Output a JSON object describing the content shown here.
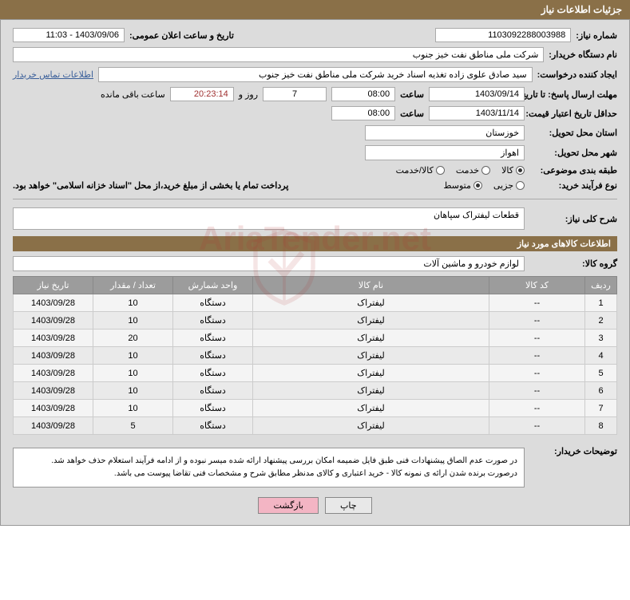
{
  "header": {
    "title": "جزئیات اطلاعات نیاز"
  },
  "fields": {
    "need_no_lbl": "شماره نیاز:",
    "need_no": "1103092288003988",
    "announce_dt_lbl": "تاریخ و ساعت اعلان عمومی:",
    "announce_dt": "1403/09/06 - 11:03",
    "buyer_org_lbl": "نام دستگاه خریدار:",
    "buyer_org": "شرکت ملی مناطق نفت خیز جنوب",
    "requester_lbl": "ایجاد کننده درخواست:",
    "requester": "سید صادق علوی زاده  تغذیه اسناد خرید  شرکت ملی مناطق نفت خیز جنوب",
    "buyer_contact": "اطلاعات تماس خریدار",
    "deadline_lbl": "مهلت ارسال پاسخ: تا تاریخ:",
    "deadline_date": "1403/09/14",
    "time_lbl": "ساعت",
    "deadline_time": "08:00",
    "days": "7",
    "days_and": "روز و",
    "remain_time": "20:23:14",
    "remain_suffix": "ساعت باقی مانده",
    "validity_lbl": "حداقل تاریخ اعتبار قیمت: تا تاریخ:",
    "validity_date": "1403/11/14",
    "validity_time": "08:00",
    "province_lbl": "استان محل تحویل:",
    "province": "خوزستان",
    "city_lbl": "شهر محل تحویل:",
    "city": "اهواز",
    "category_lbl": "طبقه بندی موضوعی:",
    "cat_goods": "کالا",
    "cat_service": "خدمت",
    "cat_both": "کالا/خدمت",
    "purchase_type_lbl": "نوع فرآیند خرید:",
    "pt_small": "جزیی",
    "pt_medium": "متوسط",
    "invoice_note": "پرداخت تمام یا بخشی از مبلغ خرید،از محل \"اسناد خزانه اسلامی\" خواهد بود.",
    "desc_lbl": "شرح کلی نیاز:",
    "desc": "قطعات لیفتراک سپاهان",
    "goods_info_title": "اطلاعات کالاهای مورد نیاز",
    "group_lbl": "گروه کالا:",
    "group": "لوازم خودرو و ماشین آلات",
    "note_lbl": "توضیحات خریدار:",
    "note_text": "در صورت عدم الصاق پیشنهادات فنی طبق فایل ضمیمه امکان بررسی پیشنهاد ارائه شده میسر نبوده و از ادامه فرآیند استعلام حذف خواهد شد.\nدرصورت برنده شدن ارائه ی نمونه کالا - خرید اعتباری و کالای مدنظر مطابق شرح و مشخصات فنی تقاضا پیوست می باشد.",
    "btn_print": "چاپ",
    "btn_back": "بازگشت"
  },
  "table": {
    "headers": [
      "ردیف",
      "کد کالا",
      "نام کالا",
      "واحد شمارش",
      "تعداد / مقدار",
      "تاریخ نیاز"
    ],
    "rows": [
      [
        "1",
        "--",
        "لیفتراک",
        "دستگاه",
        "10",
        "1403/09/28"
      ],
      [
        "2",
        "--",
        "لیفتراک",
        "دستگاه",
        "10",
        "1403/09/28"
      ],
      [
        "3",
        "--",
        "لیفتراک",
        "دستگاه",
        "20",
        "1403/09/28"
      ],
      [
        "4",
        "--",
        "لیفتراک",
        "دستگاه",
        "10",
        "1403/09/28"
      ],
      [
        "5",
        "--",
        "لیفتراک",
        "دستگاه",
        "10",
        "1403/09/28"
      ],
      [
        "6",
        "--",
        "لیفتراک",
        "دستگاه",
        "10",
        "1403/09/28"
      ],
      [
        "7",
        "--",
        "لیفتراک",
        "دستگاه",
        "10",
        "1403/09/28"
      ],
      [
        "8",
        "--",
        "لیفتراک",
        "دستگاه",
        "5",
        "1403/09/28"
      ]
    ],
    "col_widths": [
      "40px",
      "120px",
      "auto",
      "100px",
      "100px",
      "100px"
    ]
  },
  "colors": {
    "header_bg": "#8a7048",
    "page_bg": "#dcdcdc",
    "th_bg": "#9c9c9c",
    "link": "#3a5f9a",
    "btn_pink": "#f3b5c4"
  },
  "watermark": "AriaTender.net"
}
